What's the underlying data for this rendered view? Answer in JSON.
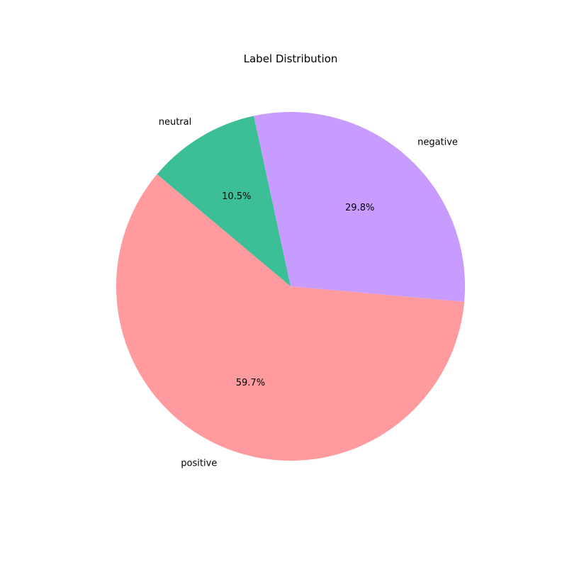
{
  "chart_data": {
    "type": "pie",
    "title": "Label Distribution",
    "labels": [
      "positive",
      "negative",
      "neutral"
    ],
    "values": [
      59.7,
      29.8,
      10.5
    ],
    "percent_labels": [
      "59.7%",
      "29.8%",
      "10.5%"
    ],
    "colors": [
      "#ff9a9e",
      "#c89bff",
      "#3cbf96"
    ],
    "start_angle_deg": 140,
    "direction": "counterclockwise"
  }
}
